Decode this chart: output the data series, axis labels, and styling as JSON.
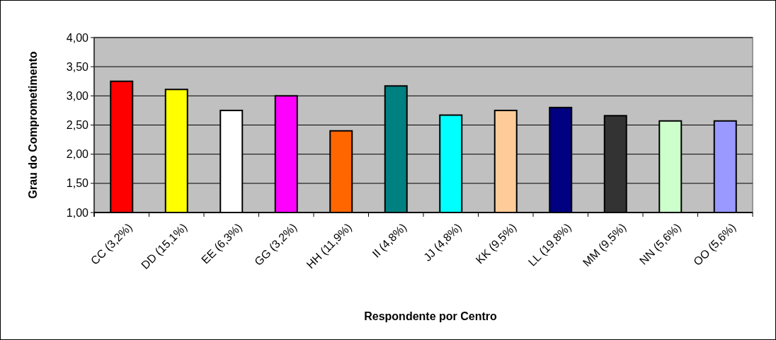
{
  "chart_data": {
    "type": "bar",
    "xlabel": "Respondente por Centro",
    "ylabel": "Grau do Comprometimento",
    "categories": [
      "CC (3,2%)",
      "DD (15,1%)",
      "EE (6,3%)",
      "GG (3,2%)",
      "HH (11,9%)",
      "II (4,8%)",
      "JJ (4,8%)",
      "KK (9,5%)",
      "LL (19,8%)",
      "MM (9,5%)",
      "NN (5,6%)",
      "OO (5,6%)"
    ],
    "values": [
      3.25,
      3.11,
      2.75,
      3.0,
      2.4,
      3.17,
      2.67,
      2.75,
      2.8,
      2.66,
      2.57,
      2.57
    ],
    "colors": [
      "#ff0000",
      "#ffff00",
      "#ffffff",
      "#ff00ff",
      "#ff6600",
      "#008080",
      "#00ffff",
      "#ffcc99",
      "#000080",
      "#333333",
      "#ccffcc",
      "#9999ff"
    ],
    "ylim": [
      1,
      4
    ],
    "yticks": [
      {
        "value": 1,
        "label": "1,00"
      },
      {
        "value": 1.5,
        "label": "1,50"
      },
      {
        "value": 2,
        "label": "2,00"
      },
      {
        "value": 2.5,
        "label": "2,50"
      },
      {
        "value": 3,
        "label": "3,00"
      },
      {
        "value": 3.5,
        "label": "3,50"
      },
      {
        "value": 4,
        "label": "4,00"
      }
    ],
    "grid": "y"
  }
}
